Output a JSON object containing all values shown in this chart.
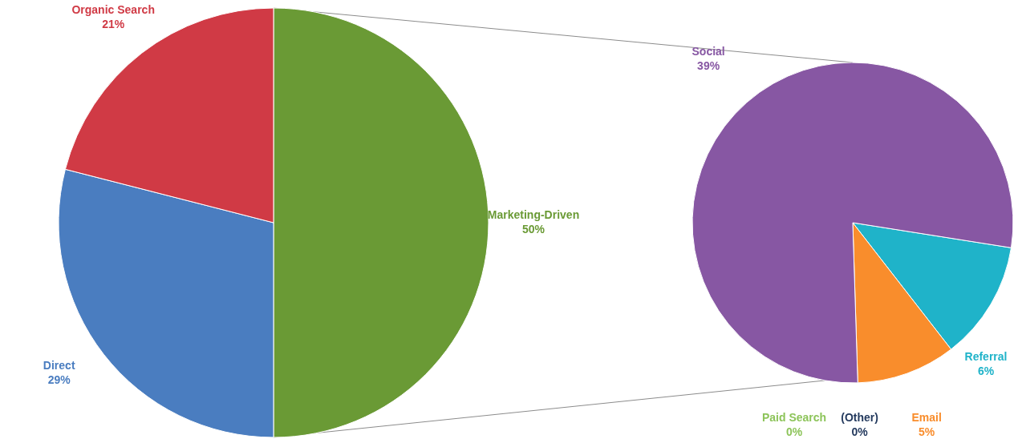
{
  "chart_data": [
    {
      "type": "pie",
      "categories": [
        "Marketing-Driven",
        "Direct",
        "Organic Search"
      ],
      "values": [
        50,
        29,
        21
      ],
      "colors": [
        "#6a9a35",
        "#4a7dc0",
        "#d03a45"
      ],
      "value_labels": [
        "50%",
        "29%",
        "21%"
      ]
    },
    {
      "type": "pie",
      "categories": [
        "Referral",
        "Email",
        "(Other)",
        "Paid Search",
        "Social"
      ],
      "values": [
        6,
        5,
        0,
        0,
        39
      ],
      "colors": [
        "#1fb3c9",
        "#f98d2c",
        "#243a5e",
        "#8dc45a",
        "#8757a3"
      ],
      "value_labels": [
        "6%",
        "5%",
        "0%",
        "0%",
        "39%"
      ]
    }
  ]
}
